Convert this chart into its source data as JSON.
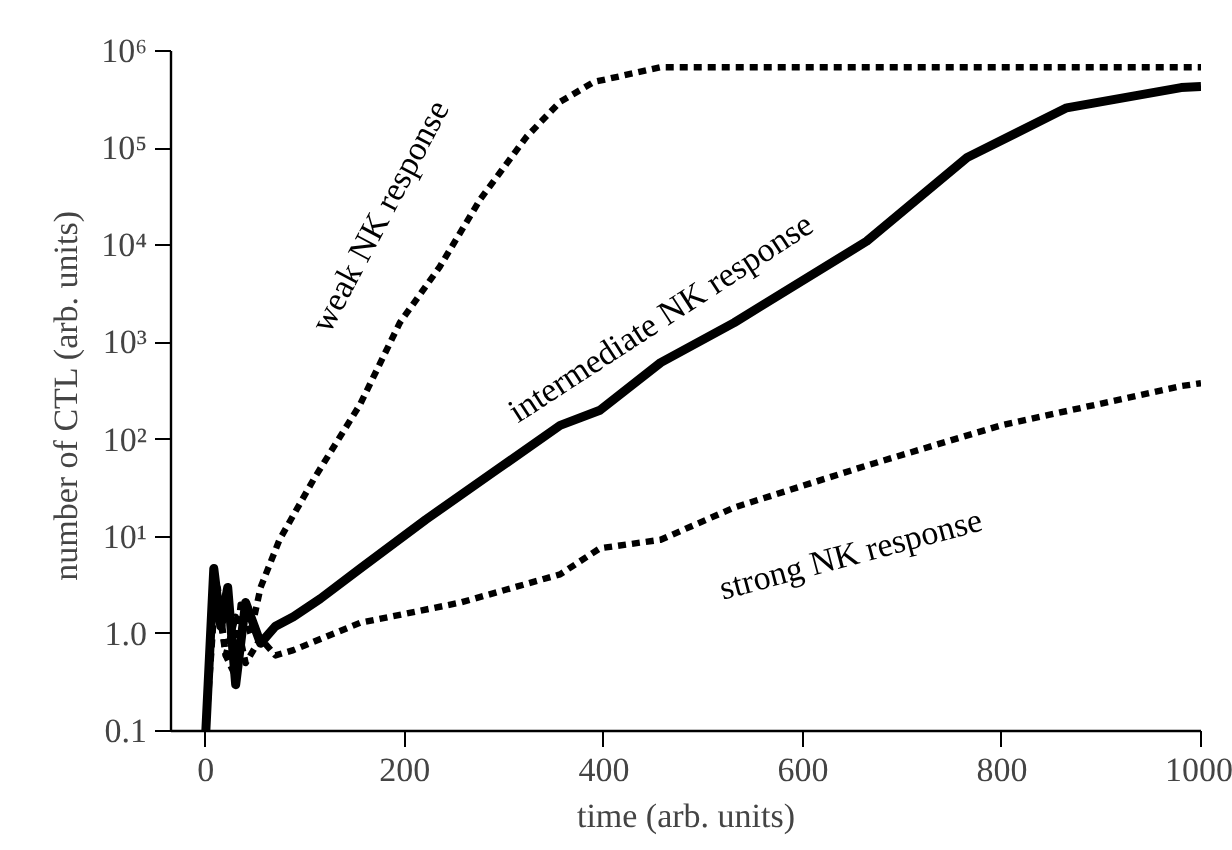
{
  "chart_data": {
    "type": "line",
    "xlabel": "time (arb. units)",
    "ylabel": "number of  CTL (arb. units)",
    "log": "y",
    "grid": false,
    "xlim": [
      -35,
      1000
    ],
    "ylim": [
      0.1,
      1000000
    ],
    "xticks": [
      0,
      200,
      400,
      600,
      800,
      1000
    ],
    "yticks": [
      {
        "value": 0.1,
        "label": "0.1"
      },
      {
        "value": 1,
        "label": "1.0"
      },
      {
        "value": 10,
        "label": "10¹"
      },
      {
        "value": 100,
        "label": "10²"
      },
      {
        "value": 1000,
        "label": "10³"
      },
      {
        "value": 10000,
        "label": "10⁴"
      },
      {
        "value": 100000,
        "label": "10⁵"
      },
      {
        "value": 1000000,
        "label": "10⁶"
      }
    ],
    "series": [
      {
        "color": "#000000",
        "line_style": "dashed",
        "x": [
          0,
          5,
          12,
          20,
          28,
          35,
          45,
          55,
          74,
          109,
          155,
          195,
          235,
          276,
          322,
          356,
          390,
          457,
          550,
          700,
          850,
          1000
        ],
        "values": [
          0.1,
          1,
          3,
          0.6,
          0.4,
          2,
          1,
          3,
          9.3,
          40,
          230,
          1600,
          6000,
          30000,
          130000,
          300000,
          480000,
          680000,
          680000,
          680000,
          680000,
          680000
        ]
      },
      {
        "color": "#000000",
        "line_style": "solid",
        "x": [
          0,
          8,
          15,
          22,
          30,
          40,
          55,
          70,
          88,
          115,
          155,
          221,
          290,
          356,
          396,
          457,
          531,
          664,
          765,
          865,
          980,
          1000
        ],
        "values": [
          0.1,
          4.7,
          1.2,
          3,
          0.3,
          2.1,
          0.8,
          1.2,
          1.5,
          2.3,
          4.7,
          15,
          47,
          140,
          200,
          620,
          1600,
          11000,
          80000,
          260000,
          420000,
          430000
        ]
      },
      {
        "color": "#000000",
        "line_style": "dashed",
        "x": [
          0,
          10,
          20,
          30,
          40,
          55,
          70,
          88,
          155,
          256,
          356,
          396,
          457,
          531,
          664,
          799,
          980,
          1000
        ],
        "values": [
          0.1,
          3,
          0.6,
          1.5,
          0.5,
          0.9,
          0.6,
          0.68,
          1.3,
          2.1,
          4.1,
          7.6,
          9.3,
          20,
          54,
          140,
          355,
          380
        ]
      }
    ],
    "annotations": [
      "weak NK response",
      "intermediate NK response",
      "strong NK response"
    ]
  }
}
